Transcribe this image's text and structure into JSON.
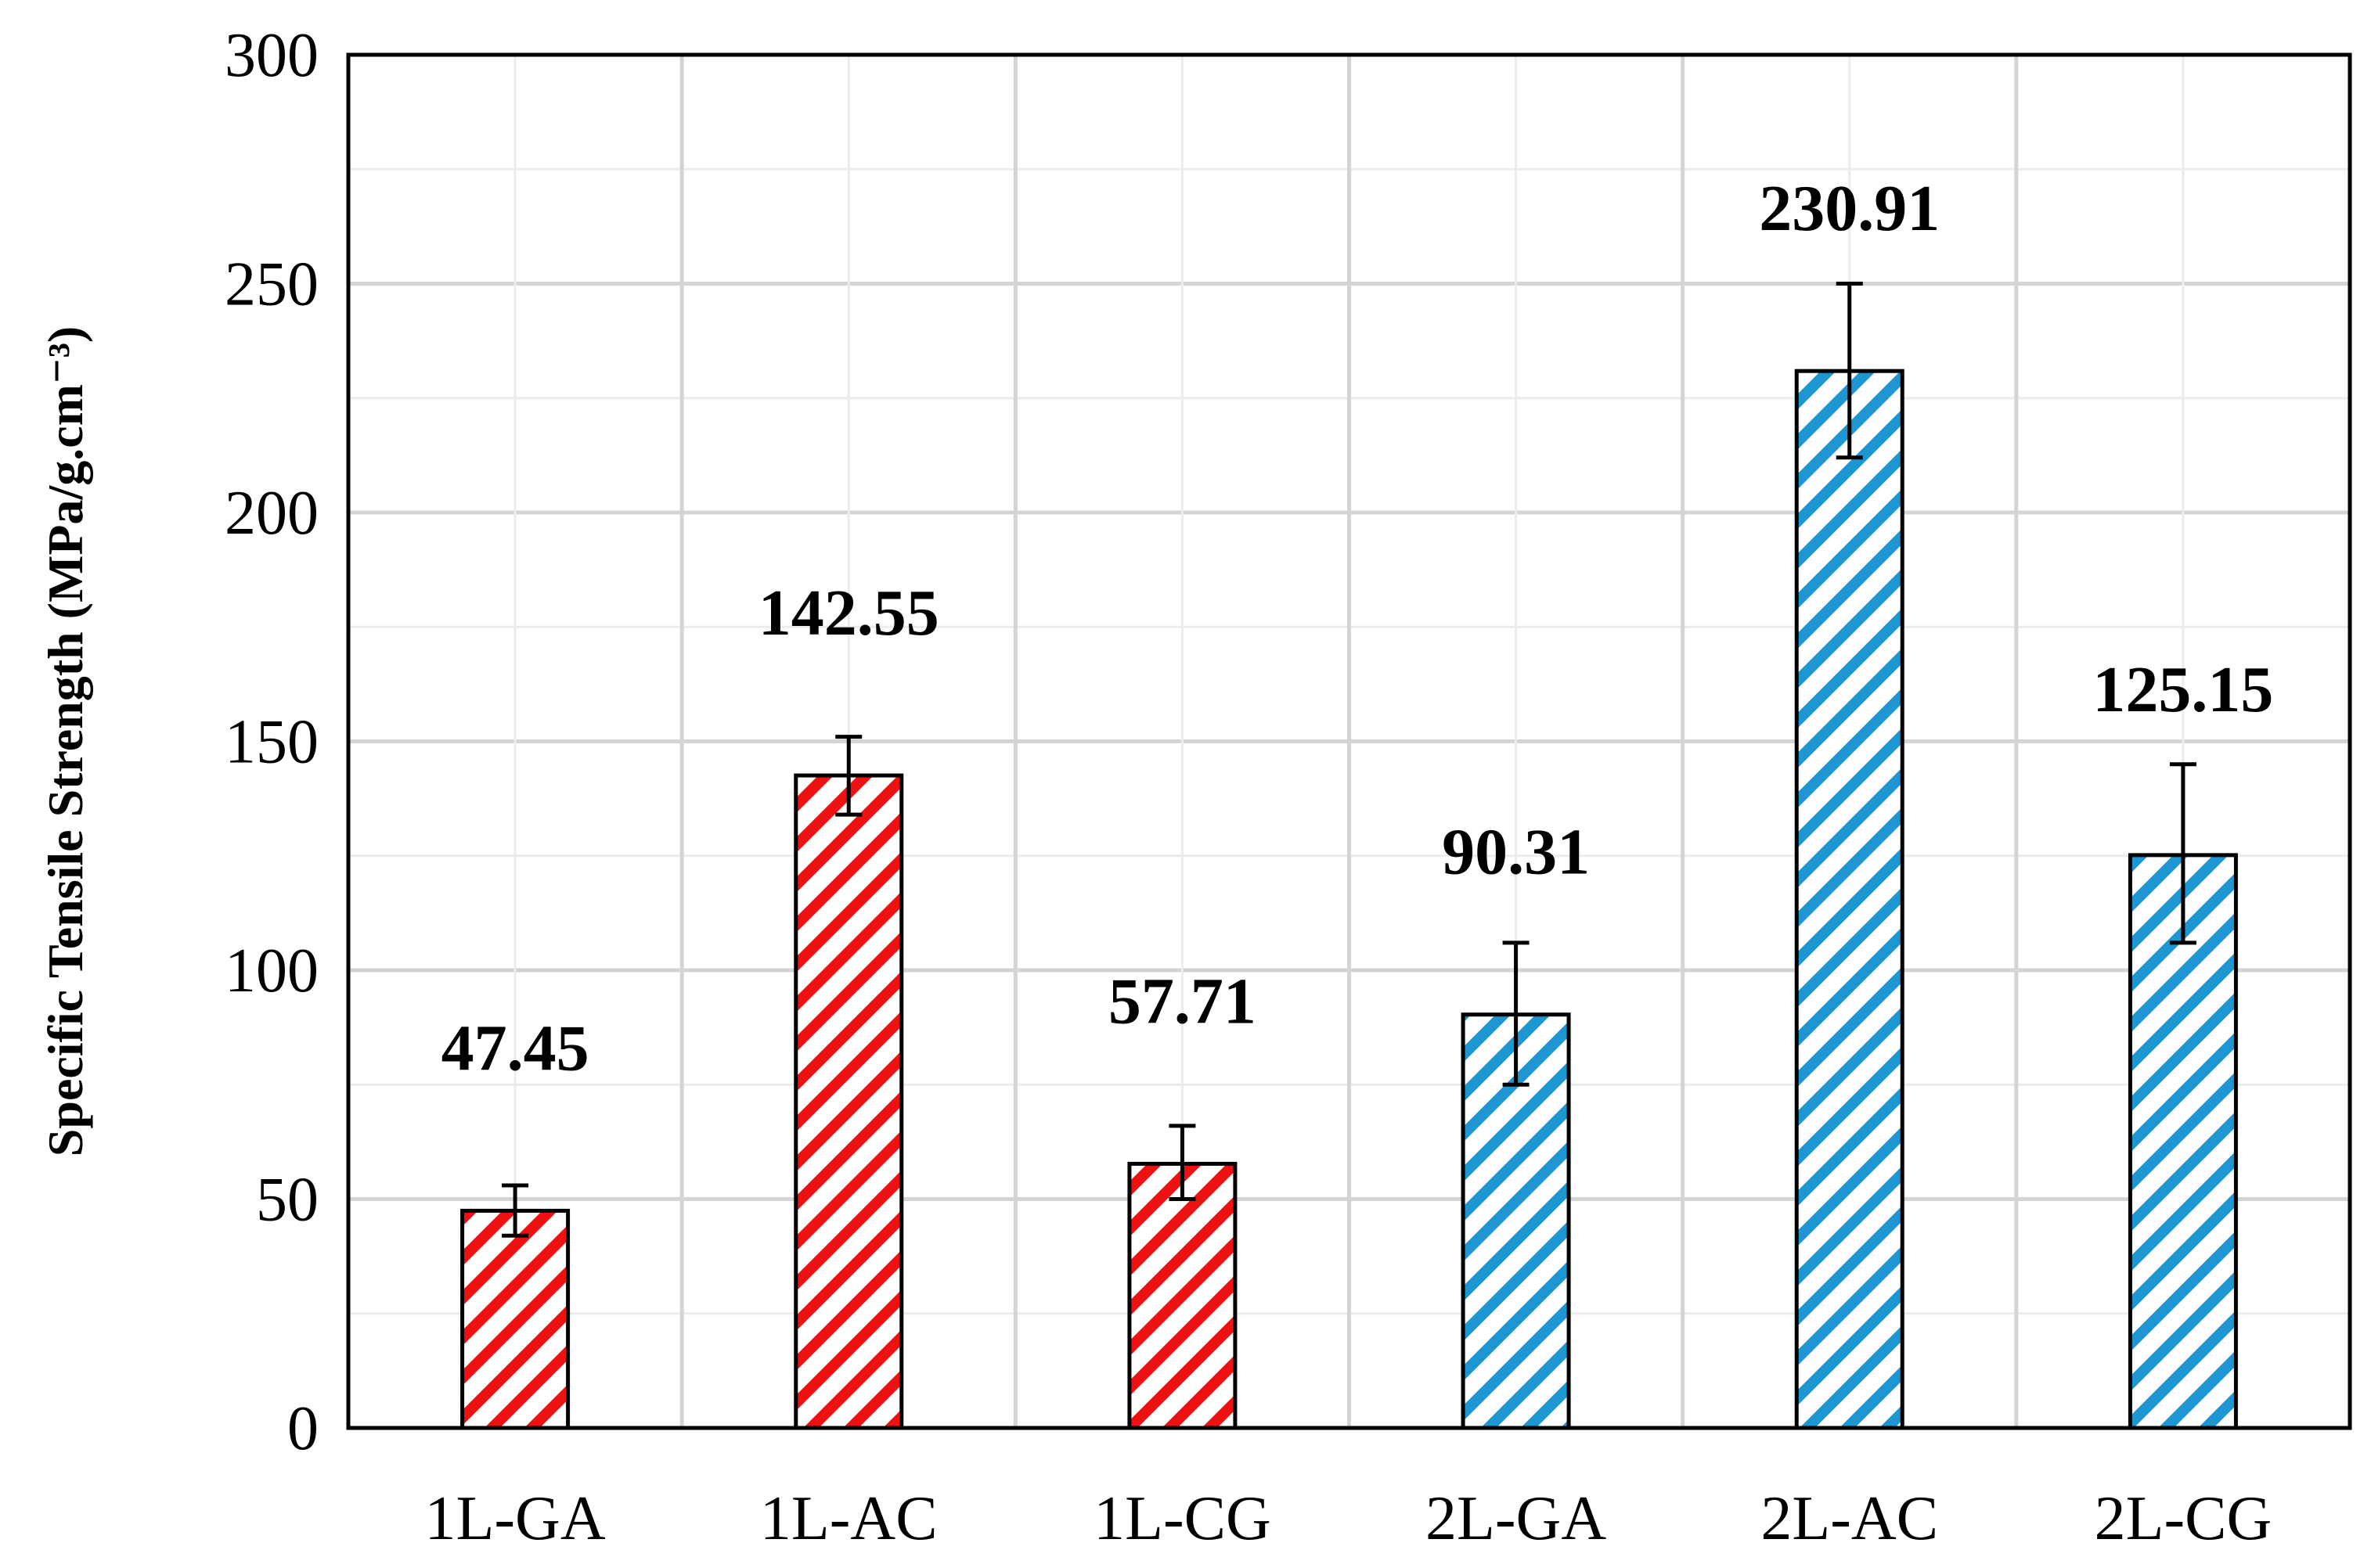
{
  "chart_data": {
    "type": "bar",
    "title": "",
    "xlabel": "",
    "ylabel": "Specific Tensile Strength  (MPa/g.cm⁻³)",
    "categories": [
      "1L-GA",
      "1L-AC",
      "1L-CG",
      "2L-GA",
      "2L-AC",
      "2L-CG"
    ],
    "values": [
      47.45,
      142.55,
      57.71,
      90.31,
      230.91,
      125.15
    ],
    "value_labels": [
      "47.45",
      "142.55",
      "57.71",
      "90.31",
      "230.91",
      "125.15"
    ],
    "error_low": [
      42,
      134,
      50,
      75,
      212,
      106
    ],
    "error_high": [
      53,
      151,
      66,
      106,
      250,
      145
    ],
    "bar_colors": [
      "#ee1111",
      "#ee1111",
      "#ee1111",
      "#1e96d2",
      "#1e96d2",
      "#1e96d2"
    ],
    "bar_pattern": "diagonal-stripes",
    "ylim": [
      0,
      300
    ],
    "yticks": [
      0,
      50,
      100,
      150,
      200,
      250,
      300
    ],
    "grid": true,
    "legend": "none"
  }
}
